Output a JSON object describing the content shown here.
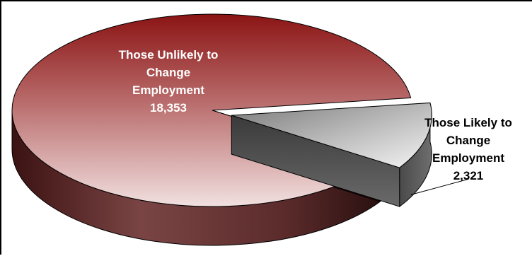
{
  "chart_data": {
    "type": "pie",
    "style": "3d-exploded",
    "title": "",
    "slices": [
      {
        "label_lines": [
          "Those Unlikely to",
          "Change",
          "Employment"
        ],
        "value_label": "18,353",
        "value": 18353,
        "color": "#8b1a1a",
        "label_color": "#ffffff"
      },
      {
        "label_lines": [
          "Those Likely to",
          "Change",
          "Employment"
        ],
        "value_label": "2,321",
        "value": 2321,
        "color": "#a0a0a0",
        "label_color": "#000000",
        "exploded": true
      }
    ],
    "legend": "none"
  }
}
